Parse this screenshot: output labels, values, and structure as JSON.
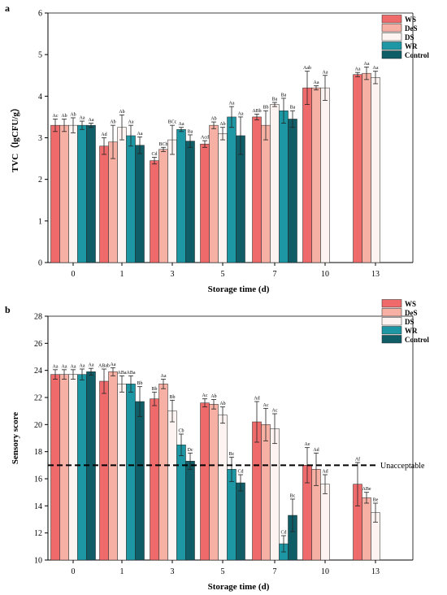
{
  "palette": {
    "WS": "#ef6b6b",
    "DeS": "#f7b0a4",
    "DS": "#fdf3f1",
    "WR": "#1d97a3",
    "Control": "#0f5d67"
  },
  "chart_data": [
    {
      "type": "bar",
      "panel": "a",
      "xlabel": "Storage time (d)",
      "ylabel": "TVC（lgCFU/g）",
      "categories": [
        "0",
        "1",
        "3",
        "5",
        "7",
        "10",
        "13"
      ],
      "ylim": [
        0,
        6
      ],
      "yticks": [
        0,
        1,
        2,
        3,
        4,
        5,
        6
      ],
      "grid": false,
      "legend": "top-right",
      "series": [
        {
          "name": "WS",
          "values": [
            3.3,
            2.8,
            2.45,
            2.85,
            3.5,
            4.2,
            4.52
          ],
          "errors": [
            0.15,
            0.2,
            0.08,
            0.08,
            0.07,
            0.4,
            0.05
          ],
          "labels": [
            "Ac",
            "Ad",
            "Cd",
            "Acd",
            "ABb",
            "Aab",
            "Aa"
          ]
        },
        {
          "name": "DeS",
          "values": [
            3.3,
            2.9,
            2.72,
            3.3,
            3.3,
            4.2,
            4.55
          ],
          "errors": [
            0.15,
            0.4,
            0.05,
            0.08,
            0.35,
            0.05,
            0.15
          ],
          "labels": [
            "Ab",
            "Ab",
            "BCb",
            "Ab",
            "Bb",
            "Aa",
            "Aa"
          ]
        },
        {
          "name": "DS",
          "values": [
            3.3,
            3.25,
            2.95,
            3.1,
            3.8,
            4.2,
            4.45
          ],
          "errors": [
            0.18,
            0.3,
            0.35,
            0.15,
            0.05,
            0.3,
            0.15
          ],
          "labels": [
            "Ab",
            "Ab",
            "BCc",
            "Ab",
            "Ba",
            "Aa",
            "Aa"
          ]
        },
        {
          "name": "WR",
          "values": [
            3.3,
            3.05,
            3.2,
            3.5,
            3.65,
            null,
            null
          ],
          "errors": [
            0.1,
            0.25,
            0.05,
            0.25,
            0.3,
            null,
            null
          ],
          "labels": [
            "Aa",
            "Aa",
            "Aa",
            "Aa",
            "Ba",
            "",
            ""
          ]
        },
        {
          "name": "Control",
          "values": [
            3.3,
            2.82,
            2.92,
            3.05,
            3.45,
            null,
            null
          ],
          "errors": [
            0.05,
            0.2,
            0.15,
            0.45,
            0.2,
            null,
            null
          ],
          "labels": [
            "Aa",
            "Aa",
            "Ba",
            "Aa",
            "Ba",
            "",
            ""
          ]
        }
      ]
    },
    {
      "type": "bar",
      "panel": "b",
      "xlabel": "Storage time (d)",
      "ylabel": "Sensory score",
      "categories": [
        "0",
        "1",
        "3",
        "5",
        "7",
        "10",
        "13"
      ],
      "ylim": [
        10,
        28
      ],
      "yticks": [
        10,
        12,
        14,
        16,
        18,
        20,
        22,
        24,
        26,
        28
      ],
      "grid": false,
      "legend": "top-right",
      "reference_line": {
        "y": 17,
        "label": "Unacceptable"
      },
      "series": [
        {
          "name": "WS",
          "values": [
            23.7,
            23.2,
            21.9,
            21.6,
            20.2,
            17.0,
            15.6
          ],
          "errors": [
            0.35,
            0.9,
            0.5,
            0.3,
            1.5,
            1.3,
            1.6
          ],
          "labels": [
            "Aa",
            "ABab",
            "Bb",
            "Ac",
            "Ad",
            "Ae",
            "Af"
          ]
        },
        {
          "name": "DeS",
          "values": [
            23.7,
            23.9,
            23.0,
            21.5,
            20.0,
            16.7,
            14.6
          ],
          "errors": [
            0.35,
            0.3,
            0.35,
            0.35,
            1.2,
            1.2,
            0.4
          ],
          "labels": [
            "Aa",
            "Aa",
            "Aa",
            "Ab",
            "Ac",
            "Ad",
            "ABe"
          ]
        },
        {
          "name": "DS",
          "values": [
            23.7,
            23.0,
            21.0,
            20.7,
            19.7,
            15.6,
            13.5
          ],
          "errors": [
            0.35,
            0.6,
            0.8,
            0.6,
            1.1,
            0.7,
            0.7
          ],
          "labels": [
            "Aa",
            "ABa",
            "Bb",
            "Ab",
            "Ac",
            "Ad",
            "Be"
          ]
        },
        {
          "name": "WR",
          "values": [
            23.7,
            23.0,
            18.5,
            16.7,
            11.2,
            null,
            null
          ],
          "errors": [
            0.4,
            0.6,
            0.8,
            0.9,
            0.6,
            null,
            null
          ],
          "labels": [
            "Aa",
            "ABa",
            "Cb",
            "Bc",
            "Cd",
            "",
            ""
          ]
        },
        {
          "name": "Control",
          "values": [
            23.9,
            21.7,
            17.3,
            15.7,
            13.3,
            null,
            null
          ],
          "errors": [
            0.25,
            1.1,
            0.6,
            0.6,
            1.2,
            null,
            null
          ],
          "labels": [
            "Aa",
            "Bb",
            "Dc",
            "Cd",
            "Bc",
            "",
            ""
          ]
        }
      ]
    }
  ]
}
